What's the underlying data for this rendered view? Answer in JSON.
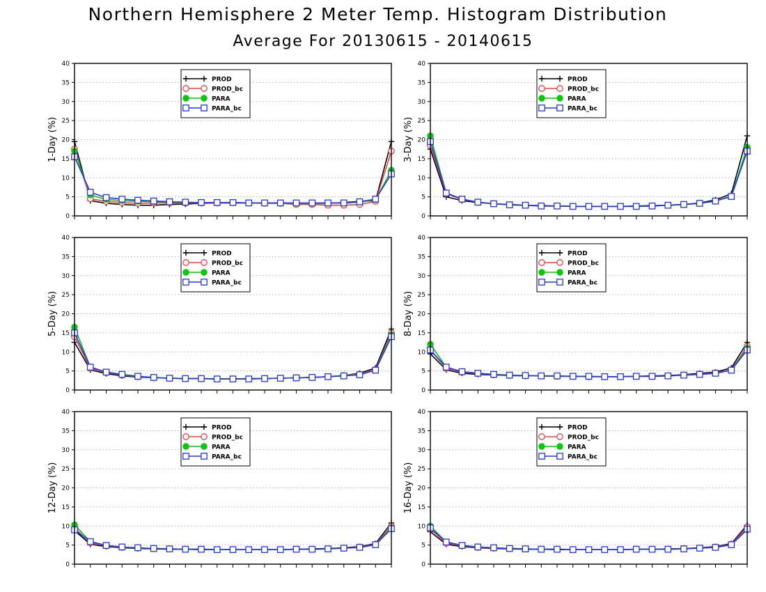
{
  "title": "Northern Hemisphere 2 Meter Temp. Histogram Distribution",
  "subtitle": "Average For 20130615 - 20140615",
  "colors": {
    "PROD": "#000000",
    "PROD_bc": "#ff3b3b",
    "PARA": "#00cc00",
    "PARA_bc": "#2233ff"
  },
  "chart_data": [
    {
      "type": "line",
      "ylabel": "1-Day (%)",
      "ylim": [
        0,
        40
      ],
      "yticks": [
        0,
        5,
        10,
        15,
        20,
        25,
        30,
        35,
        40
      ],
      "grid": "horizontal dotted",
      "legend_position": "top-center",
      "x": [
        1,
        2,
        3,
        4,
        5,
        6,
        7,
        8,
        9,
        10,
        11,
        12,
        13,
        14,
        15,
        16,
        17,
        18,
        19,
        20,
        21
      ],
      "series": [
        {
          "name": "PROD",
          "marker": "plus",
          "values": [
            19.5,
            4.0,
            3.3,
            3.0,
            2.8,
            2.8,
            3.0,
            3.1,
            3.3,
            3.4,
            3.4,
            3.4,
            3.4,
            3.4,
            3.3,
            3.3,
            3.3,
            3.5,
            3.8,
            4.0,
            19.5
          ]
        },
        {
          "name": "PROD_bc",
          "marker": "open-circle",
          "values": [
            17.5,
            4.5,
            3.8,
            3.5,
            3.3,
            3.4,
            3.4,
            3.4,
            3.4,
            3.4,
            3.5,
            3.4,
            3.3,
            3.3,
            3.0,
            3.0,
            2.8,
            2.8,
            3.0,
            3.8,
            17.0
          ]
        },
        {
          "name": "PARA",
          "marker": "filled-circle",
          "values": [
            17.0,
            5.5,
            4.3,
            4.0,
            3.8,
            3.7,
            3.6,
            3.5,
            3.5,
            3.5,
            3.5,
            3.4,
            3.4,
            3.3,
            3.3,
            3.3,
            3.3,
            3.4,
            3.6,
            4.2,
            12.0
          ]
        },
        {
          "name": "PARA_bc",
          "marker": "open-square",
          "values": [
            15.5,
            6.2,
            4.8,
            4.4,
            4.1,
            3.9,
            3.7,
            3.6,
            3.5,
            3.5,
            3.5,
            3.4,
            3.4,
            3.4,
            3.4,
            3.4,
            3.4,
            3.4,
            3.7,
            4.4,
            11.0
          ]
        }
      ]
    },
    {
      "type": "line",
      "ylabel": "3-Day (%)",
      "ylim": [
        0,
        40
      ],
      "yticks": [
        0,
        5,
        10,
        15,
        20,
        25,
        30,
        35,
        40
      ],
      "grid": "horizontal dotted",
      "legend_position": "top-center",
      "x": [
        1,
        2,
        3,
        4,
        5,
        6,
        7,
        8,
        9,
        10,
        11,
        12,
        13,
        14,
        15,
        16,
        17,
        18,
        19,
        20,
        21
      ],
      "series": [
        {
          "name": "PROD",
          "marker": "plus",
          "values": [
            17.5,
            5.0,
            4.0,
            3.5,
            3.2,
            3.0,
            2.8,
            2.7,
            2.6,
            2.5,
            2.5,
            2.5,
            2.5,
            2.6,
            2.7,
            2.8,
            3.0,
            3.4,
            4.2,
            5.8,
            21.0
          ]
        },
        {
          "name": "PROD_bc",
          "marker": "open-circle",
          "values": [
            18.5,
            5.8,
            4.3,
            3.6,
            3.2,
            2.9,
            2.8,
            2.6,
            2.6,
            2.5,
            2.5,
            2.5,
            2.5,
            2.5,
            2.6,
            2.8,
            3.0,
            3.3,
            3.9,
            5.2,
            17.5
          ]
        },
        {
          "name": "PARA",
          "marker": "filled-circle",
          "values": [
            21.0,
            6.0,
            4.4,
            3.6,
            3.2,
            2.9,
            2.8,
            2.6,
            2.6,
            2.5,
            2.5,
            2.5,
            2.5,
            2.5,
            2.6,
            2.8,
            3.0,
            3.3,
            3.9,
            5.2,
            18.0
          ]
        },
        {
          "name": "PARA_bc",
          "marker": "open-square",
          "values": [
            19.5,
            6.0,
            4.4,
            3.6,
            3.2,
            2.9,
            2.8,
            2.6,
            2.6,
            2.5,
            2.5,
            2.5,
            2.5,
            2.5,
            2.6,
            2.8,
            3.0,
            3.3,
            3.9,
            5.1,
            17.0
          ]
        }
      ]
    },
    {
      "type": "line",
      "ylabel": "5-Day (%)",
      "ylim": [
        0,
        40
      ],
      "yticks": [
        0,
        5,
        10,
        15,
        20,
        25,
        30,
        35,
        40
      ],
      "grid": "horizontal dotted",
      "legend_position": "top-center",
      "x": [
        1,
        2,
        3,
        4,
        5,
        6,
        7,
        8,
        9,
        10,
        11,
        12,
        13,
        14,
        15,
        16,
        17,
        18,
        19,
        20,
        21
      ],
      "series": [
        {
          "name": "PROD",
          "marker": "plus",
          "values": [
            12.5,
            5.3,
            4.3,
            3.7,
            3.4,
            3.2,
            3.1,
            3.0,
            3.0,
            2.9,
            2.9,
            3.0,
            3.0,
            3.1,
            3.2,
            3.3,
            3.5,
            3.8,
            4.4,
            5.8,
            16.0
          ]
        },
        {
          "name": "PROD_bc",
          "marker": "open-circle",
          "values": [
            14.0,
            5.7,
            4.6,
            3.9,
            3.5,
            3.2,
            3.1,
            3.0,
            3.0,
            2.9,
            2.9,
            2.9,
            3.0,
            3.1,
            3.2,
            3.3,
            3.5,
            3.8,
            4.2,
            5.4,
            15.0
          ]
        },
        {
          "name": "PARA",
          "marker": "filled-circle",
          "values": [
            16.5,
            6.0,
            4.7,
            4.0,
            3.5,
            3.2,
            3.1,
            3.0,
            3.0,
            2.9,
            2.9,
            2.9,
            3.0,
            3.1,
            3.2,
            3.3,
            3.5,
            3.8,
            4.1,
            5.2,
            14.5
          ]
        },
        {
          "name": "PARA_bc",
          "marker": "open-square",
          "values": [
            15.0,
            6.0,
            4.7,
            4.1,
            3.6,
            3.3,
            3.1,
            3.0,
            3.0,
            2.9,
            2.9,
            2.9,
            3.0,
            3.1,
            3.2,
            3.3,
            3.5,
            3.7,
            4.0,
            5.2,
            14.0
          ]
        }
      ]
    },
    {
      "type": "line",
      "ylabel": "8-Day (%)",
      "ylim": [
        0,
        40
      ],
      "yticks": [
        0,
        5,
        10,
        15,
        20,
        25,
        30,
        35,
        40
      ],
      "grid": "horizontal dotted",
      "legend_position": "top-center",
      "x": [
        1,
        2,
        3,
        4,
        5,
        6,
        7,
        8,
        9,
        10,
        11,
        12,
        13,
        14,
        15,
        16,
        17,
        18,
        19,
        20,
        21
      ],
      "series": [
        {
          "name": "PROD",
          "marker": "plus",
          "values": [
            9.5,
            5.3,
            4.4,
            4.1,
            3.9,
            3.8,
            3.7,
            3.7,
            3.6,
            3.6,
            3.5,
            3.5,
            3.5,
            3.6,
            3.7,
            3.8,
            4.0,
            4.4,
            4.7,
            5.8,
            12.5
          ]
        },
        {
          "name": "PROD_bc",
          "marker": "open-circle",
          "values": [
            10.5,
            5.7,
            4.7,
            4.3,
            4.0,
            3.8,
            3.7,
            3.7,
            3.6,
            3.6,
            3.5,
            3.5,
            3.5,
            3.6,
            3.6,
            3.7,
            3.9,
            4.2,
            4.5,
            5.3,
            11.5
          ]
        },
        {
          "name": "PARA",
          "marker": "filled-circle",
          "values": [
            12.0,
            6.0,
            4.8,
            4.4,
            4.0,
            3.8,
            3.7,
            3.7,
            3.6,
            3.6,
            3.5,
            3.5,
            3.5,
            3.6,
            3.6,
            3.7,
            3.9,
            4.1,
            4.4,
            5.2,
            11.0
          ]
        },
        {
          "name": "PARA_bc",
          "marker": "open-square",
          "values": [
            10.5,
            6.0,
            4.8,
            4.4,
            4.1,
            3.9,
            3.8,
            3.7,
            3.7,
            3.6,
            3.6,
            3.5,
            3.5,
            3.6,
            3.6,
            3.7,
            3.9,
            4.1,
            4.4,
            5.2,
            10.5
          ]
        }
      ]
    },
    {
      "type": "line",
      "ylabel": "12-Day (%)",
      "ylim": [
        0,
        40
      ],
      "yticks": [
        0,
        5,
        10,
        15,
        20,
        25,
        30,
        35,
        40
      ],
      "grid": "horizontal dotted",
      "legend_position": "top-center",
      "x": [
        1,
        2,
        3,
        4,
        5,
        6,
        7,
        8,
        9,
        10,
        11,
        12,
        13,
        14,
        15,
        16,
        17,
        18,
        19,
        20,
        21
      ],
      "series": [
        {
          "name": "PROD",
          "marker": "plus",
          "values": [
            8.8,
            5.2,
            4.6,
            4.3,
            4.1,
            4.0,
            3.9,
            3.9,
            3.8,
            3.8,
            3.8,
            3.8,
            3.8,
            3.8,
            3.9,
            4.0,
            4.1,
            4.3,
            4.6,
            5.4,
            10.8
          ]
        },
        {
          "name": "PROD_bc",
          "marker": "open-circle",
          "values": [
            9.5,
            5.6,
            4.8,
            4.4,
            4.2,
            4.1,
            4.0,
            3.9,
            3.9,
            3.8,
            3.8,
            3.8,
            3.8,
            3.8,
            3.9,
            3.9,
            4.0,
            4.2,
            4.5,
            5.2,
            10.0
          ]
        },
        {
          "name": "PARA",
          "marker": "filled-circle",
          "values": [
            10.3,
            5.9,
            4.9,
            4.5,
            4.2,
            4.1,
            4.0,
            3.9,
            3.9,
            3.8,
            3.8,
            3.8,
            3.8,
            3.8,
            3.9,
            3.9,
            4.0,
            4.2,
            4.4,
            5.1,
            9.6
          ]
        },
        {
          "name": "PARA_bc",
          "marker": "open-square",
          "values": [
            9.0,
            5.9,
            4.9,
            4.5,
            4.3,
            4.1,
            4.0,
            3.9,
            3.9,
            3.8,
            3.8,
            3.8,
            3.8,
            3.8,
            3.9,
            3.9,
            4.0,
            4.2,
            4.4,
            5.1,
            9.3
          ]
        }
      ]
    },
    {
      "type": "line",
      "ylabel": "16-Day (%)",
      "ylim": [
        0,
        40
      ],
      "yticks": [
        0,
        5,
        10,
        15,
        20,
        25,
        30,
        35,
        40
      ],
      "grid": "horizontal dotted",
      "legend_position": "top-center",
      "x": [
        1,
        2,
        3,
        4,
        5,
        6,
        7,
        8,
        9,
        10,
        11,
        12,
        13,
        14,
        15,
        16,
        17,
        18,
        19,
        20,
        21
      ],
      "series": [
        {
          "name": "PROD",
          "marker": "plus",
          "values": [
            8.5,
            5.2,
            4.6,
            4.3,
            4.1,
            4.0,
            3.9,
            3.9,
            3.8,
            3.8,
            3.8,
            3.8,
            3.8,
            3.9,
            3.9,
            4.0,
            4.1,
            4.3,
            4.6,
            5.4,
            10.3
          ]
        },
        {
          "name": "PROD_bc",
          "marker": "open-circle",
          "values": [
            9.2,
            5.5,
            4.8,
            4.4,
            4.2,
            4.1,
            4.0,
            3.9,
            3.9,
            3.8,
            3.8,
            3.8,
            3.8,
            3.9,
            3.9,
            3.9,
            4.1,
            4.2,
            4.5,
            5.2,
            9.8
          ]
        },
        {
          "name": "PARA",
          "marker": "filled-circle",
          "values": [
            10.0,
            5.8,
            4.9,
            4.5,
            4.3,
            4.1,
            4.0,
            3.9,
            3.9,
            3.8,
            3.8,
            3.8,
            3.8,
            3.9,
            3.9,
            3.9,
            4.0,
            4.2,
            4.4,
            5.1,
            9.0
          ]
        },
        {
          "name": "PARA_bc",
          "marker": "open-square",
          "values": [
            9.5,
            5.8,
            4.9,
            4.5,
            4.3,
            4.1,
            4.0,
            3.9,
            3.9,
            3.8,
            3.8,
            3.8,
            3.8,
            3.9,
            3.9,
            3.9,
            4.0,
            4.2,
            4.4,
            5.1,
            9.2
          ]
        }
      ]
    }
  ]
}
